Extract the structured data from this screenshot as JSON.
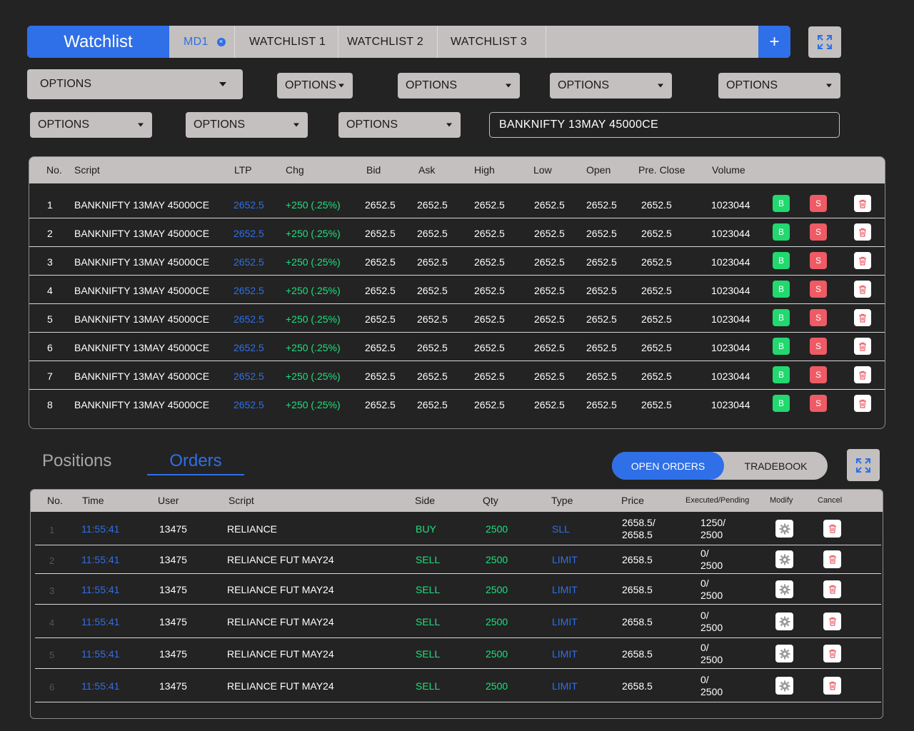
{
  "tabbar": {
    "brand": "Watchlist",
    "tabs": [
      {
        "label": "MD1",
        "active": true
      },
      {
        "label": "WATCHLIST 1",
        "active": false
      },
      {
        "label": "WATCHLIST 2",
        "active": false
      },
      {
        "label": "WATCHLIST 3",
        "active": false
      }
    ],
    "close_glyph": "×",
    "add_glyph": "+"
  },
  "filters": {
    "row1": [
      "OPTIONS",
      "OPTIONS",
      "OPTIONS",
      "OPTIONS",
      "OPTIONS"
    ],
    "row2": [
      "OPTIONS",
      "OPTIONS",
      "OPTIONS"
    ],
    "search_value": "BANKNIFTY 13MAY 45000CE"
  },
  "watchlist": {
    "headers": [
      "No.",
      "Script",
      "LTP",
      "Chg",
      "Bid",
      "Ask",
      "High",
      "Low",
      "Open",
      "Pre. Close",
      "Volume"
    ],
    "buy_label": "B",
    "sell_label": "S",
    "rows": [
      {
        "no": "1",
        "script": "BANKNIFTY 13MAY 45000CE",
        "ltp": "2652.5",
        "chg": "+250 (.25%)",
        "bid": "2652.5",
        "ask": "2652.5",
        "high": "2652.5",
        "low": "2652.5",
        "open": "2652.5",
        "pclose": "2652.5",
        "volume": "1023044"
      },
      {
        "no": "2",
        "script": "BANKNIFTY 13MAY 45000CE",
        "ltp": "2652.5",
        "chg": "+250 (.25%)",
        "bid": "2652.5",
        "ask": "2652.5",
        "high": "2652.5",
        "low": "2652.5",
        "open": "2652.5",
        "pclose": "2652.5",
        "volume": "1023044"
      },
      {
        "no": "3",
        "script": "BANKNIFTY 13MAY 45000CE",
        "ltp": "2652.5",
        "chg": "+250 (.25%)",
        "bid": "2652.5",
        "ask": "2652.5",
        "high": "2652.5",
        "low": "2652.5",
        "open": "2652.5",
        "pclose": "2652.5",
        "volume": "1023044"
      },
      {
        "no": "4",
        "script": "BANKNIFTY 13MAY 45000CE",
        "ltp": "2652.5",
        "chg": "+250 (.25%)",
        "bid": "2652.5",
        "ask": "2652.5",
        "high": "2652.5",
        "low": "2652.5",
        "open": "2652.5",
        "pclose": "2652.5",
        "volume": "1023044"
      },
      {
        "no": "5",
        "script": "BANKNIFTY 13MAY 45000CE",
        "ltp": "2652.5",
        "chg": "+250 (.25%)",
        "bid": "2652.5",
        "ask": "2652.5",
        "high": "2652.5",
        "low": "2652.5",
        "open": "2652.5",
        "pclose": "2652.5",
        "volume": "1023044"
      },
      {
        "no": "6",
        "script": "BANKNIFTY 13MAY 45000CE",
        "ltp": "2652.5",
        "chg": "+250 (.25%)",
        "bid": "2652.5",
        "ask": "2652.5",
        "high": "2652.5",
        "low": "2652.5",
        "open": "2652.5",
        "pclose": "2652.5",
        "volume": "1023044"
      },
      {
        "no": "7",
        "script": "BANKNIFTY 13MAY 45000CE",
        "ltp": "2652.5",
        "chg": "+250 (.25%)",
        "bid": "2652.5",
        "ask": "2652.5",
        "high": "2652.5",
        "low": "2652.5",
        "open": "2652.5",
        "pclose": "2652.5",
        "volume": "1023044"
      },
      {
        "no": "8",
        "script": "BANKNIFTY 13MAY 45000CE",
        "ltp": "2652.5",
        "chg": "+250 (.25%)",
        "bid": "2652.5",
        "ask": "2652.5",
        "high": "2652.5",
        "low": "2652.5",
        "open": "2652.5",
        "pclose": "2652.5",
        "volume": "1023044"
      }
    ]
  },
  "bottom_tabs": {
    "positions": "Positions",
    "orders": "Orders",
    "open_orders": "OPEN ORDERS",
    "tradebook": "TRADEBOOK"
  },
  "orders": {
    "headers": [
      "No.",
      "Time",
      "User",
      "Script",
      "Side",
      "Qty",
      "Type",
      "Price",
      "Executed/Pending",
      "Modify",
      "Cancel"
    ],
    "rows": [
      {
        "no": "1",
        "time": "11:55:41",
        "user": "13475",
        "script": "RELIANCE",
        "side": "BUY",
        "qty": "2500",
        "type": "SLL",
        "price_l1": "2658.5/",
        "price_l2": "2658.5",
        "exec_l1": "1250/",
        "exec_l2": "2500"
      },
      {
        "no": "2",
        "time": "11:55:41",
        "user": "13475",
        "script": "RELIANCE FUT MAY24",
        "side": "SELL",
        "qty": "2500",
        "type": "LIMIT",
        "price_l1": "2658.5",
        "price_l2": "",
        "exec_l1": "0/",
        "exec_l2": "2500"
      },
      {
        "no": "3",
        "time": "11:55:41",
        "user": "13475",
        "script": "RELIANCE FUT MAY24",
        "side": "SELL",
        "qty": "2500",
        "type": "LIMIT",
        "price_l1": "2658.5",
        "price_l2": "",
        "exec_l1": "0/",
        "exec_l2": "2500"
      },
      {
        "no": "4",
        "time": "11:55:41",
        "user": "13475",
        "script": "RELIANCE FUT MAY24",
        "side": "SELL",
        "qty": "2500",
        "type": "LIMIT",
        "price_l1": "2658.5",
        "price_l2": "",
        "exec_l1": "0/",
        "exec_l2": "2500"
      },
      {
        "no": "5",
        "time": "11:55:41",
        "user": "13475",
        "script": "RELIANCE FUT MAY24",
        "side": "SELL",
        "qty": "2500",
        "type": "LIMIT",
        "price_l1": "2658.5",
        "price_l2": "",
        "exec_l1": "0/",
        "exec_l2": "2500"
      },
      {
        "no": "6",
        "time": "11:55:41",
        "user": "13475",
        "script": "RELIANCE FUT MAY24",
        "side": "SELL",
        "qty": "2500",
        "type": "LIMIT",
        "price_l1": "2658.5",
        "price_l2": "",
        "exec_l1": "0/",
        "exec_l2": "2500"
      }
    ]
  },
  "icons": {
    "expand": "expand-icon",
    "trash": "trash-icon",
    "gear": "gear-icon"
  },
  "colors": {
    "accent": "#2f6fe8",
    "buy": "#22d86f",
    "sell": "#ee5b64",
    "positive": "#1fe07e",
    "panel": "#c4c0bf",
    "background": "#232323"
  }
}
